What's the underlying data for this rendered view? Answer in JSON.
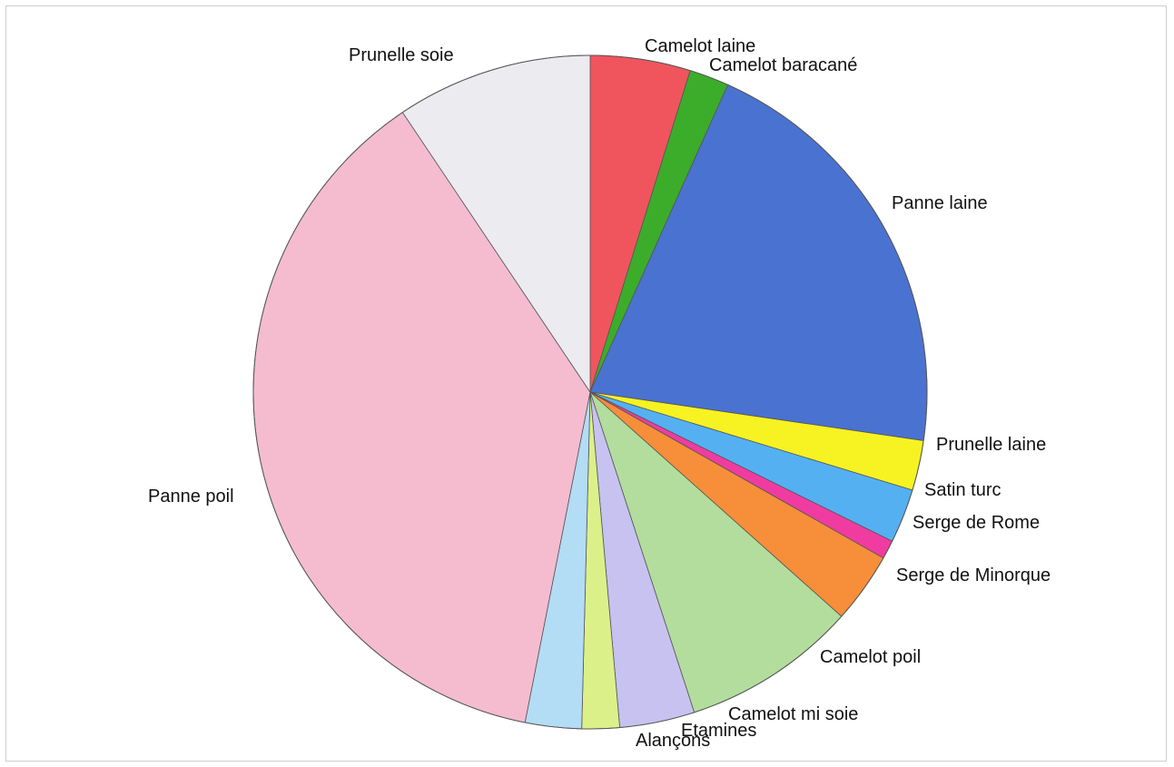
{
  "chart_data": {
    "type": "pie",
    "title": "",
    "start_angle_deg": 0,
    "direction": "clockwise",
    "slices": [
      {
        "label": "Camelot laine",
        "value": 4.8,
        "color": "#f0555e"
      },
      {
        "label": "Camelot baracané",
        "value": 1.9,
        "color": "#3cad2a"
      },
      {
        "label": "Panne laine",
        "value": 20.6,
        "color": "#4a72d0"
      },
      {
        "label": "Prunelle laine",
        "value": 2.4,
        "color": "#f7f222"
      },
      {
        "label": "Satin turc",
        "value": 2.6,
        "color": "#55b0f2"
      },
      {
        "label": "Serge de Rome",
        "value": 0.9,
        "color": "#f03ca0"
      },
      {
        "label": "Serge de Minorque",
        "value": 3.4,
        "color": "#f78e3a"
      },
      {
        "label": "Camelot poil",
        "value": 8.4,
        "color": "#b3dd9d"
      },
      {
        "label": "Camelot mi soie",
        "value": 3.6,
        "color": "#c7c2ef"
      },
      {
        "label": "Etamines",
        "value": 1.8,
        "color": "#dcf08a"
      },
      {
        "label": "Alançons",
        "value": 2.7,
        "color": "#b3dcf5"
      },
      {
        "label": "Panne poil",
        "value": 37.5,
        "color": "#f5bcd0"
      },
      {
        "label": "Prunelle soie",
        "value": 9.4,
        "color": "#ebebf0"
      }
    ]
  }
}
